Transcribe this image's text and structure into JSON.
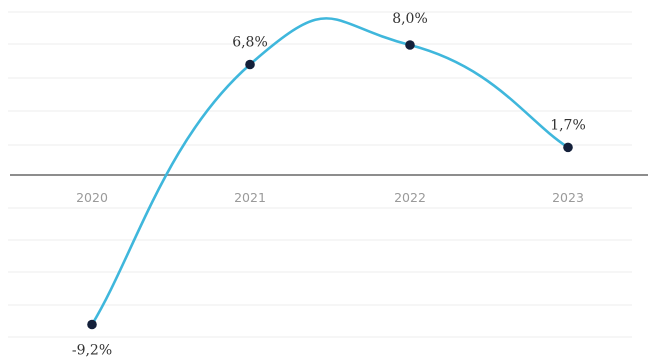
{
  "chart_data": {
    "type": "line",
    "categories": [
      "2020",
      "2021",
      "2022",
      "2023"
    ],
    "series": [
      {
        "values": [
          -9.2,
          6.8,
          8.0,
          1.7
        ],
        "labels": [
          "-9,2%",
          "6,8%",
          "8,0%",
          "1,7%"
        ],
        "color": "#3fb7dc",
        "marker_color": "#14203a"
      }
    ],
    "title": "",
    "xlabel": "",
    "ylabel": "",
    "ylim": [
      -10,
      10
    ],
    "grid": true,
    "legend": "none",
    "smooth": true,
    "colors": {
      "axis": "#7d7d7d",
      "grid": "#ececec",
      "tick_label": "#9a9a9a",
      "data_label": "#333333"
    }
  }
}
